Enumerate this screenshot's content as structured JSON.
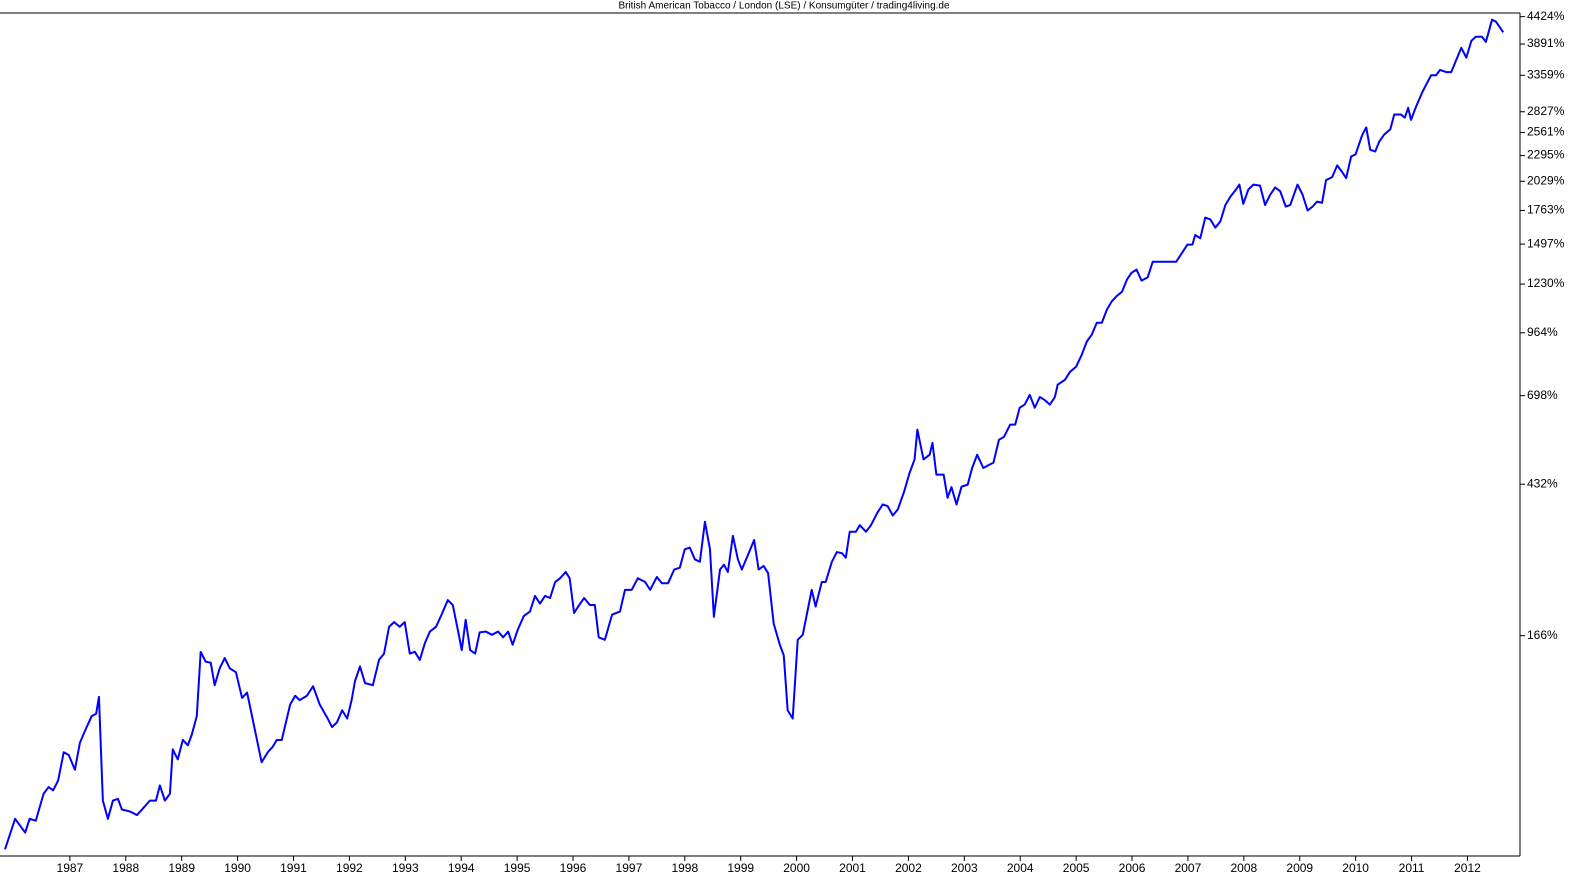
{
  "chart_data": {
    "type": "line",
    "title": "British American Tobacco / London (LSE) / Konsumgüter / trading4living.de",
    "color": "#0000ff",
    "log_scale": true,
    "grid": false,
    "xlim": [
      1985.75,
      2012.94
    ],
    "ylim": [
      -3,
      4500
    ],
    "xticks": [
      1987,
      1988,
      1989,
      1990,
      1991,
      1992,
      1993,
      1994,
      1995,
      1996,
      1997,
      1998,
      1999,
      2000,
      2001,
      2002,
      2003,
      2004,
      2005,
      2006,
      2007,
      2008,
      2009,
      2010,
      2011,
      2012
    ],
    "yticks": [
      {
        "value": 4424,
        "label": "4424%"
      },
      {
        "value": 3891,
        "label": "3891%"
      },
      {
        "value": 3359,
        "label": "3359%"
      },
      {
        "value": 2827,
        "label": "2827%"
      },
      {
        "value": 2561,
        "label": "2561%"
      },
      {
        "value": 2295,
        "label": "2295%"
      },
      {
        "value": 2029,
        "label": "2029%"
      },
      {
        "value": 1763,
        "label": "1763%"
      },
      {
        "value": 1497,
        "label": "1497%"
      },
      {
        "value": 1230,
        "label": "1230%"
      },
      {
        "value": 964,
        "label": "964%"
      },
      {
        "value": 698,
        "label": "698%"
      },
      {
        "value": 432,
        "label": "432%"
      },
      {
        "value": 166,
        "label": "166%"
      }
    ],
    "x": [
      1985.84,
      1986.02,
      1986.2,
      1986.28,
      1986.39,
      1986.53,
      1986.62,
      1986.7,
      1986.79,
      1986.89,
      1986.98,
      1987.09,
      1987.18,
      1987.29,
      1987.39,
      1987.47,
      1987.52,
      1987.59,
      1987.68,
      1987.77,
      1987.86,
      1987.93,
      1988.07,
      1988.2,
      1988.29,
      1988.43,
      1988.54,
      1988.61,
      1988.7,
      1988.79,
      1988.84,
      1988.93,
      1989.02,
      1989.11,
      1989.18,
      1989.27,
      1989.34,
      1989.43,
      1989.52,
      1989.59,
      1989.68,
      1989.77,
      1989.86,
      1989.97,
      1990.08,
      1990.17,
      1990.43,
      1990.54,
      1990.63,
      1990.7,
      1990.79,
      1990.94,
      1991.03,
      1991.11,
      1991.24,
      1991.35,
      1991.47,
      1991.6,
      1991.69,
      1991.78,
      1991.87,
      1991.96,
      1992.04,
      1992.1,
      1992.19,
      1992.28,
      1992.42,
      1992.53,
      1992.62,
      1992.71,
      1992.8,
      1992.9,
      1992.99,
      1993.08,
      1993.17,
      1993.26,
      1993.35,
      1993.44,
      1993.55,
      1993.65,
      1993.76,
      1993.85,
      1993.94,
      1994.01,
      1994.08,
      1994.16,
      1994.25,
      1994.33,
      1994.44,
      1994.55,
      1994.66,
      1994.75,
      1994.84,
      1994.92,
      1995.01,
      1995.12,
      1995.23,
      1995.32,
      1995.41,
      1995.5,
      1995.59,
      1995.68,
      1995.77,
      1995.87,
      1995.94,
      1996.02,
      1996.11,
      1996.2,
      1996.3,
      1996.39,
      1996.46,
      1996.57,
      1996.7,
      1996.84,
      1996.93,
      1997.05,
      1997.16,
      1997.29,
      1997.38,
      1997.5,
      1997.59,
      1997.7,
      1997.81,
      1997.91,
      1998.0,
      1998.09,
      1998.18,
      1998.27,
      1998.36,
      1998.45,
      1998.52,
      1998.63,
      1998.7,
      1998.77,
      1998.86,
      1998.95,
      1999.02,
      1999.13,
      1999.24,
      1999.32,
      1999.41,
      1999.49,
      1999.59,
      1999.7,
      1999.77,
      1999.84,
      1999.93,
      2000.02,
      2000.11,
      2000.27,
      2000.34,
      2000.45,
      2000.52,
      2000.63,
      2000.72,
      2000.81,
      2000.88,
      2000.95,
      2001.06,
      2001.13,
      2001.24,
      2001.33,
      2001.44,
      2001.54,
      2001.63,
      2001.72,
      2001.81,
      2001.92,
      2002.02,
      2002.11,
      2002.16,
      2002.27,
      2002.38,
      2002.43,
      2002.5,
      2002.63,
      2002.7,
      2002.77,
      2002.86,
      2002.95,
      2003.06,
      2003.14,
      2003.23,
      2003.34,
      2003.45,
      2003.52,
      2003.62,
      2003.71,
      2003.82,
      2003.91,
      2003.99,
      2004.08,
      2004.17,
      2004.26,
      2004.35,
      2004.44,
      2004.53,
      2004.62,
      2004.67,
      2004.8,
      2004.89,
      2005.0,
      2005.1,
      2005.19,
      2005.28,
      2005.37,
      2005.46,
      2005.55,
      2005.64,
      2005.73,
      2005.82,
      2005.91,
      2005.99,
      2006.08,
      2006.17,
      2006.28,
      2006.37,
      2006.61,
      2006.79,
      2006.99,
      2007.08,
      2007.13,
      2007.22,
      2007.31,
      2007.4,
      2007.49,
      2007.58,
      2007.67,
      2007.76,
      2007.86,
      2007.92,
      2007.99,
      2008.08,
      2008.17,
      2008.29,
      2008.38,
      2008.47,
      2008.56,
      2008.65,
      2008.75,
      2008.83,
      2008.96,
      2009.05,
      2009.14,
      2009.23,
      2009.31,
      2009.4,
      2009.47,
      2009.58,
      2009.67,
      2009.76,
      2009.83,
      2009.92,
      2010.0,
      2010.12,
      2010.19,
      2010.26,
      2010.35,
      2010.42,
      2010.51,
      2010.62,
      2010.69,
      2010.81,
      2010.88,
      2010.94,
      2010.99,
      2011.08,
      2011.19,
      2011.28,
      2011.35,
      2011.44,
      2011.51,
      2011.62,
      2011.71,
      2011.8,
      2011.89,
      2011.98,
      2012.07,
      2012.15,
      2012.26,
      2012.33,
      2012.44,
      2012.51,
      2012.64
    ],
    "values": [
      0,
      15,
      8,
      15,
      14,
      29,
      33,
      31,
      37,
      56,
      54,
      44,
      63,
      74,
      84,
      86,
      101,
      25,
      15,
      25,
      26,
      20,
      19,
      17,
      20,
      25,
      25,
      34,
      25,
      29,
      58,
      51,
      65,
      61,
      69,
      84,
      147,
      136,
      135,
      112,
      129,
      140,
      129,
      125,
      100,
      105,
      49,
      56,
      60,
      65,
      65,
      94,
      102,
      98,
      102,
      111,
      94,
      83,
      75,
      79,
      89,
      82,
      98,
      116,
      131,
      114,
      112,
      138,
      145,
      177,
      183,
      177,
      183,
      145,
      147,
      138,
      157,
      171,
      177,
      193,
      213,
      206,
      173,
      149,
      186,
      149,
      145,
      170,
      171,
      167,
      171,
      164,
      171,
      155,
      173,
      191,
      197,
      219,
      208,
      219,
      216,
      240,
      246,
      256,
      246,
      195,
      206,
      216,
      206,
      206,
      164,
      161,
      193,
      197,
      228,
      228,
      246,
      240,
      228,
      248,
      238,
      238,
      260,
      263,
      295,
      298,
      277,
      273,
      348,
      295,
      190,
      260,
      268,
      256,
      320,
      277,
      260,
      285,
      312,
      260,
      266,
      254,
      181,
      155,
      143,
      89,
      82,
      161,
      167,
      228,
      204,
      240,
      240,
      273,
      290,
      288,
      280,
      328,
      328,
      341,
      328,
      341,
      366,
      385,
      381,
      361,
      374,
      413,
      460,
      496,
      583,
      496,
      509,
      543,
      456,
      456,
      400,
      425,
      385,
      426,
      431,
      473,
      509,
      473,
      482,
      487,
      552,
      561,
      599,
      599,
      655,
      666,
      701,
      655,
      693,
      682,
      666,
      693,
      739,
      758,
      790,
      811,
      862,
      922,
      955,
      1014,
      1014,
      1083,
      1130,
      1160,
      1184,
      1258,
      1300,
      1321,
      1251,
      1272,
      1373,
      1373,
      1373,
      1493,
      1493,
      1565,
      1540,
      1703,
      1688,
      1622,
      1672,
      1810,
      1885,
      1950,
      1997,
      1820,
      1950,
      1997,
      1987,
      1810,
      1900,
      1970,
      1935,
      1796,
      1810,
      1997,
      1903,
      1763,
      1796,
      1840,
      1830,
      2040,
      2070,
      2190,
      2120,
      2060,
      2285,
      2310,
      2537,
      2624,
      2360,
      2340,
      2450,
      2537,
      2600,
      2790,
      2790,
      2750,
      2880,
      2720,
      2895,
      3097,
      3243,
      3359,
      3359,
      3445,
      3410,
      3410,
      3612,
      3822,
      3650,
      3950,
      4026,
      4026,
      3930,
      4361,
      4320,
      4110
    ]
  }
}
